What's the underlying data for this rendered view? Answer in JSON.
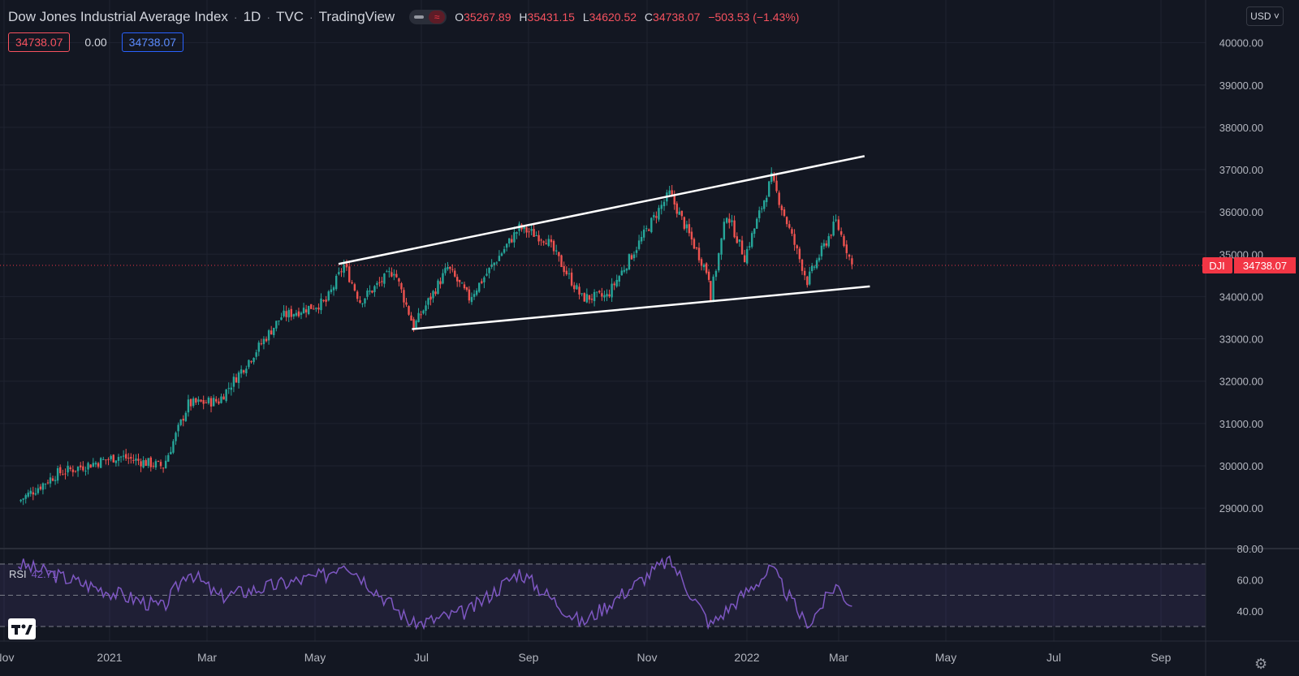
{
  "header": {
    "symbol_name": "Dow Jones Industrial Average Index",
    "interval": "1D",
    "exchange": "TVC",
    "source": "TradingView",
    "ohlc": {
      "o_label": "O",
      "o": "35267.89",
      "h_label": "H",
      "h": "35431.15",
      "l_label": "L",
      "l": "34620.52",
      "c_label": "C",
      "c": "34738.07",
      "change": "−503.53 (−1.43%)"
    }
  },
  "badges": {
    "price_red": "34738.07",
    "spread": "0.00",
    "price_blue": "34738.07"
  },
  "currency": "USD",
  "rsi_label": "RSI",
  "rsi_value": "42.71",
  "last_price_label": {
    "symbol": "DJI",
    "price": "34738.07"
  },
  "colors": {
    "background": "#131722",
    "up": "#26a69a",
    "down": "#ef5350",
    "rsi": "#7e57c2",
    "trendline": "#ffffff",
    "last_price": "#f23645"
  },
  "icons": [
    "tradingview-logo-icon",
    "settings-gear-icon",
    "chevron-down-icon"
  ],
  "chart_data": [
    {
      "type": "candlestick",
      "title": "Dow Jones Industrial Average Index · 1D · TVC",
      "x_axis_labels": [
        "Nov",
        "2021",
        "Mar",
        "May",
        "Jul",
        "Sep",
        "Nov",
        "2022",
        "Mar",
        "May",
        "Jul",
        "Sep"
      ],
      "y_axis_labels": [
        "40000.00",
        "39000.00",
        "38000.00",
        "37000.00",
        "36000.00",
        "35000.00",
        "34000.00",
        "33000.00",
        "32000.00",
        "31000.00",
        "30000.00",
        "29000.00"
      ],
      "ylim": [
        28100,
        40300
      ],
      "grid": true,
      "last_price": 34738.07,
      "closes_approx": [
        {
          "x": "2020-11-09",
          "close": 29157
        },
        {
          "x": "2020-12-01",
          "close": 29823
        },
        {
          "x": "2021-01-04",
          "close": 30224
        },
        {
          "x": "2021-01-29",
          "close": 29983
        },
        {
          "x": "2021-02-12",
          "close": 31458
        },
        {
          "x": "2021-03-01",
          "close": 31536
        },
        {
          "x": "2021-04-05",
          "close": 33527
        },
        {
          "x": "2021-04-30",
          "close": 33875
        },
        {
          "x": "2021-05-10",
          "close": 34743
        },
        {
          "x": "2021-05-19",
          "close": 33896
        },
        {
          "x": "2021-06-07",
          "close": 34630
        },
        {
          "x": "2021-06-18",
          "close": 33290
        },
        {
          "x": "2021-07-07",
          "close": 34681
        },
        {
          "x": "2021-07-19",
          "close": 33962
        },
        {
          "x": "2021-08-16",
          "close": 35625
        },
        {
          "x": "2021-08-31",
          "close": 35361
        },
        {
          "x": "2021-09-20",
          "close": 33970
        },
        {
          "x": "2021-10-04",
          "close": 34002
        },
        {
          "x": "2021-11-02",
          "close": 36053
        },
        {
          "x": "2021-11-08",
          "close": 36432
        },
        {
          "x": "2021-11-30",
          "close": 34484
        },
        {
          "x": "2021-12-01",
          "close": 34022
        },
        {
          "x": "2021-12-10",
          "close": 35971
        },
        {
          "x": "2021-12-20",
          "close": 34932
        },
        {
          "x": "2022-01-04",
          "close": 36799
        },
        {
          "x": "2022-01-24",
          "close": 34365
        },
        {
          "x": "2022-01-28",
          "close": 34726
        },
        {
          "x": "2022-02-09",
          "close": 35768
        },
        {
          "x": "2022-02-15",
          "close": 35124
        },
        {
          "x": "2022-02-18",
          "close": 34738
        }
      ],
      "extremes": {
        "high_approx": 36952,
        "low_approx": 33150
      },
      "trendlines": [
        {
          "name": "upper channel",
          "start": {
            "x": "2021-05-07",
            "y": 34770
          },
          "end": {
            "x": "2022-02-25",
            "y": 37320
          }
        },
        {
          "name": "lower channel",
          "start": {
            "x": "2021-06-17",
            "y": 33230
          },
          "end": {
            "x": "2022-02-28",
            "y": 34240
          }
        }
      ]
    },
    {
      "type": "line",
      "title": "RSI",
      "current_value": 42.71,
      "y_axis_labels": [
        "80.00",
        "60.00",
        "40.00"
      ],
      "bands": [
        70,
        50,
        30
      ],
      "series_approx": [
        {
          "x": "2020-11-09",
          "y": 70
        },
        {
          "x": "2021-01-29",
          "y": 42
        },
        {
          "x": "2021-02-12",
          "y": 66
        },
        {
          "x": "2021-03-01",
          "y": 49
        },
        {
          "x": "2021-04-30",
          "y": 63
        },
        {
          "x": "2021-05-10",
          "y": 72
        },
        {
          "x": "2021-06-18",
          "y": 31
        },
        {
          "x": "2021-07-19",
          "y": 40
        },
        {
          "x": "2021-08-16",
          "y": 65
        },
        {
          "x": "2021-09-20",
          "y": 32
        },
        {
          "x": "2021-11-08",
          "y": 73
        },
        {
          "x": "2021-12-01",
          "y": 31
        },
        {
          "x": "2022-01-04",
          "y": 67
        },
        {
          "x": "2022-01-24",
          "y": 30
        },
        {
          "x": "2022-02-09",
          "y": 57
        },
        {
          "x": "2022-02-18",
          "y": 43
        }
      ]
    }
  ]
}
